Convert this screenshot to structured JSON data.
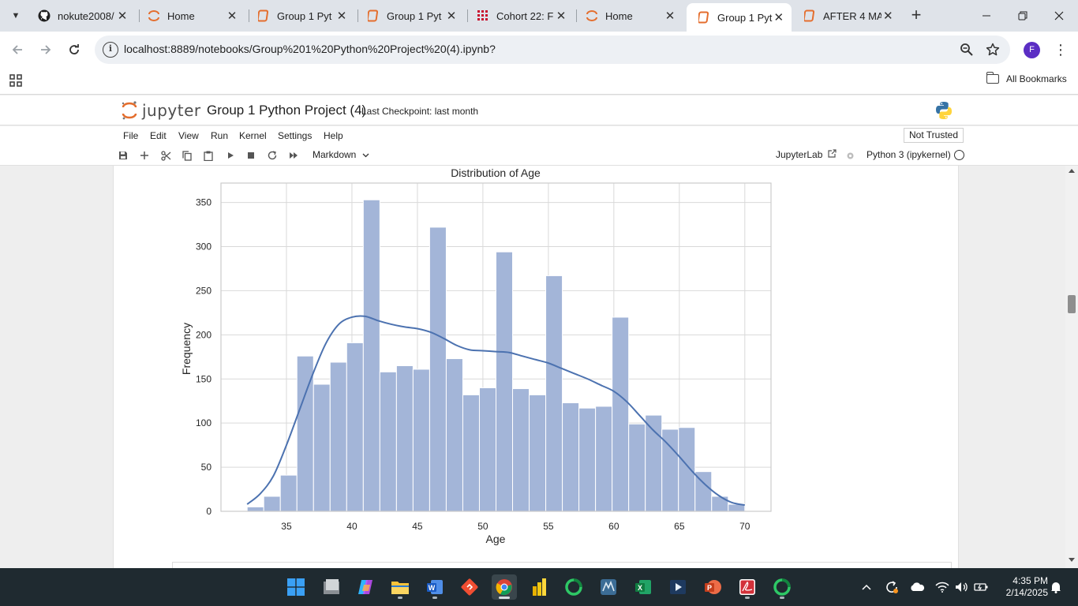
{
  "browser": {
    "tabs": [
      {
        "label": "nokute2008/",
        "icon": "github-icon",
        "active": false
      },
      {
        "label": "Home",
        "icon": "jupyter-icon",
        "active": false
      },
      {
        "label": "Group 1 Pyt",
        "icon": "notebook-icon",
        "active": false
      },
      {
        "label": "Group 1 Pyt",
        "icon": "notebook-icon",
        "active": false
      },
      {
        "label": "Cohort 22: F",
        "icon": "grid-app-icon",
        "active": false
      },
      {
        "label": "Home",
        "icon": "jupyter-icon",
        "active": false
      },
      {
        "label": "Group 1 Pyth",
        "icon": "notebook-icon",
        "active": true
      },
      {
        "label": "AFTER 4 MA",
        "icon": "notebook-icon",
        "active": false
      }
    ],
    "url": "localhost:8889/notebooks/Group%201%20Python%20Project%20(4).ipynb?",
    "profile_initial": "F",
    "bookmarks_label": "All Bookmarks"
  },
  "jupyter": {
    "logo_text": "jupyter",
    "notebook_title": "Group 1 Python Project (4)",
    "checkpoint": "Last Checkpoint: last month",
    "menu": [
      "File",
      "Edit",
      "View",
      "Run",
      "Kernel",
      "Settings",
      "Help"
    ],
    "trust_status": "Not Trusted",
    "cell_type": "Markdown",
    "jupyterlab_label": "JupyterLab",
    "kernel": "Python 3 (ipykernel)"
  },
  "chart_data": {
    "type": "bar",
    "title": "Distribution of Age",
    "xlabel": "Age",
    "ylabel": "Frequency",
    "xlim": [
      30,
      72
    ],
    "ylim": [
      0,
      372
    ],
    "x_ticks": [
      35,
      40,
      45,
      50,
      55,
      60,
      65,
      70
    ],
    "y_ticks": [
      0,
      50,
      100,
      150,
      200,
      250,
      300,
      350
    ],
    "grid": true,
    "bar_color": "#a3b5d8",
    "line_color": "#4c72b0",
    "bins": {
      "start": 32,
      "end": 70,
      "count": 30,
      "values": [
        5,
        17,
        41,
        176,
        144,
        169,
        191,
        353,
        158,
        165,
        161,
        322,
        173,
        132,
        140,
        294,
        139,
        132,
        267,
        123,
        117,
        119,
        220,
        99,
        109,
        93,
        95,
        45,
        17,
        8
      ]
    },
    "kde": {
      "x": [
        32,
        33,
        34,
        35,
        36,
        37,
        38,
        39,
        40,
        41,
        42,
        43,
        44,
        45,
        46,
        47,
        48,
        49,
        50,
        51,
        52,
        53,
        54,
        55,
        56,
        57,
        58,
        59,
        60,
        61,
        62,
        63,
        64,
        65,
        66,
        67,
        68,
        69,
        70
      ],
      "y": [
        8,
        20,
        40,
        75,
        115,
        155,
        190,
        212,
        220,
        221,
        216,
        212,
        209,
        207,
        203,
        196,
        188,
        183,
        182,
        181,
        180,
        176,
        172,
        168,
        162,
        156,
        150,
        143,
        136,
        124,
        108,
        92,
        78,
        62,
        45,
        30,
        18,
        10,
        7
      ]
    }
  },
  "taskbar": {
    "apps": [
      "windows-start-icon",
      "file-manager-icon",
      "copilot-icon",
      "file-explorer-icon",
      "word-icon",
      "git-icon",
      "chrome-icon",
      "power-bi-icon",
      "jupyter-ring-icon",
      "sql-workbench-icon",
      "excel-icon",
      "media-player-icon",
      "powerpoint-icon",
      "pdf-reader-icon",
      "jupyter-ring-icon"
    ],
    "time": "4:35 PM",
    "date": "2/14/2025"
  }
}
